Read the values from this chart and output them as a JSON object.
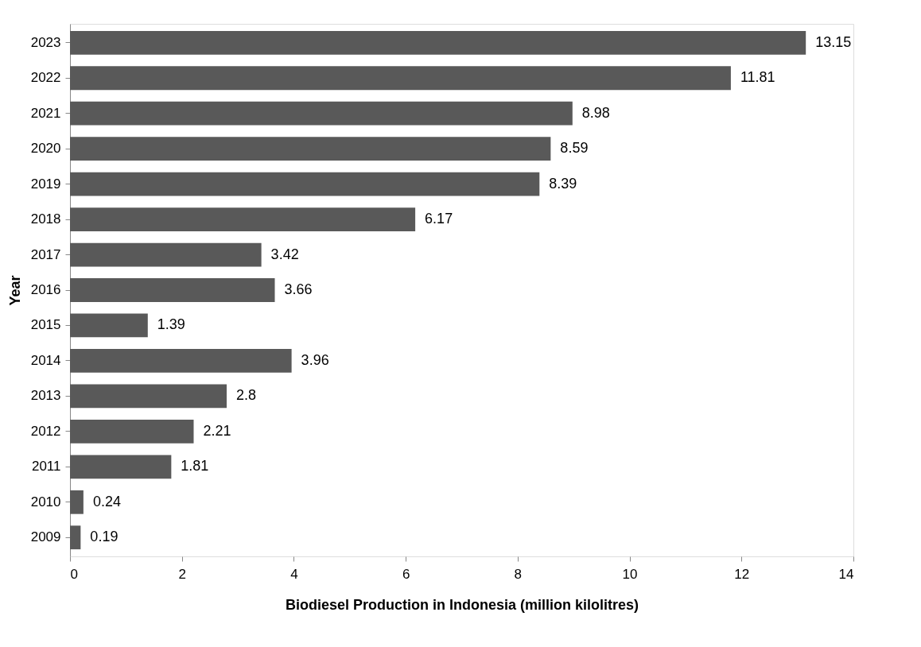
{
  "chart_data": {
    "type": "bar",
    "orientation": "horizontal",
    "xlabel": "Biodiesel Production in Indonesia (million kilolitres)",
    "ylabel": "Year",
    "categories": [
      "2023",
      "2022",
      "2021",
      "2020",
      "2019",
      "2018",
      "2017",
      "2016",
      "2015",
      "2014",
      "2013",
      "2012",
      "2011",
      "2010",
      "2009"
    ],
    "values": [
      13.15,
      11.81,
      8.98,
      8.59,
      8.39,
      6.17,
      3.42,
      3.66,
      1.39,
      3.96,
      2.8,
      2.21,
      1.81,
      0.24,
      0.19
    ],
    "color": "#595959",
    "xlim": [
      0,
      14
    ],
    "xticks": [
      0,
      2,
      4,
      6,
      8,
      10,
      12,
      14
    ],
    "grid": false,
    "data_labels": true
  }
}
